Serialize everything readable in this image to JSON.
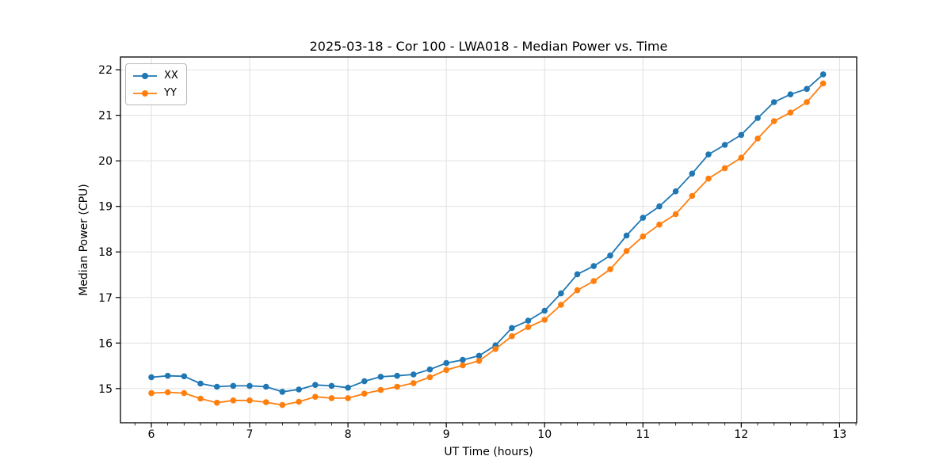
{
  "chart_data": {
    "type": "line",
    "title": "2025-03-18 - Cor 100 - LWA018 - Median Power vs. Time",
    "xlabel": "UT Time (hours)",
    "ylabel": "Median Power (CPU)",
    "xlim": [
      5.686,
      13.174
    ],
    "ylim": [
      14.25,
      22.28
    ],
    "x_ticks": [
      6,
      7,
      8,
      9,
      10,
      11,
      12,
      13
    ],
    "y_ticks": [
      15,
      16,
      17,
      18,
      19,
      20,
      21,
      22
    ],
    "x_minor_step": 0.1666667,
    "grid": true,
    "legend_position": "upper-left",
    "colors": {
      "grid": "#e0e0e0",
      "spine": "#000000",
      "tick": "#000000"
    },
    "x": [
      6.0,
      6.167,
      6.333,
      6.5,
      6.667,
      6.833,
      7.0,
      7.167,
      7.333,
      7.5,
      7.667,
      7.833,
      8.0,
      8.167,
      8.333,
      8.5,
      8.667,
      8.833,
      9.0,
      9.167,
      9.333,
      9.5,
      9.667,
      9.833,
      10.0,
      10.167,
      10.333,
      10.5,
      10.667,
      10.833,
      11.0,
      11.167,
      11.333,
      11.5,
      11.667,
      11.833,
      12.0,
      12.167,
      12.333,
      12.5,
      12.667,
      12.833
    ],
    "series": [
      {
        "name": "XX",
        "color": "#1f77b4",
        "values": [
          15.25,
          15.28,
          15.27,
          15.11,
          15.04,
          15.06,
          15.06,
          15.04,
          14.93,
          14.98,
          15.08,
          15.06,
          15.02,
          15.16,
          15.26,
          15.28,
          15.31,
          15.42,
          15.56,
          15.63,
          15.72,
          15.95,
          16.33,
          16.49,
          16.71,
          17.09,
          17.51,
          17.69,
          17.92,
          18.36,
          18.75,
          19.0,
          19.33,
          19.72,
          20.14,
          20.35,
          20.57,
          20.94,
          21.29,
          21.46,
          21.58,
          21.9
        ]
      },
      {
        "name": "YY",
        "color": "#ff7f0e",
        "values": [
          14.9,
          14.92,
          14.9,
          14.78,
          14.69,
          14.74,
          14.74,
          14.7,
          14.64,
          14.71,
          14.82,
          14.79,
          14.79,
          14.89,
          14.97,
          15.04,
          15.12,
          15.25,
          15.41,
          15.51,
          15.61,
          15.87,
          16.15,
          16.35,
          16.51,
          16.84,
          17.16,
          17.36,
          17.62,
          18.02,
          18.34,
          18.6,
          18.83,
          19.23,
          19.61,
          19.84,
          20.07,
          20.49,
          20.87,
          21.06,
          21.29,
          21.7
        ]
      }
    ]
  }
}
